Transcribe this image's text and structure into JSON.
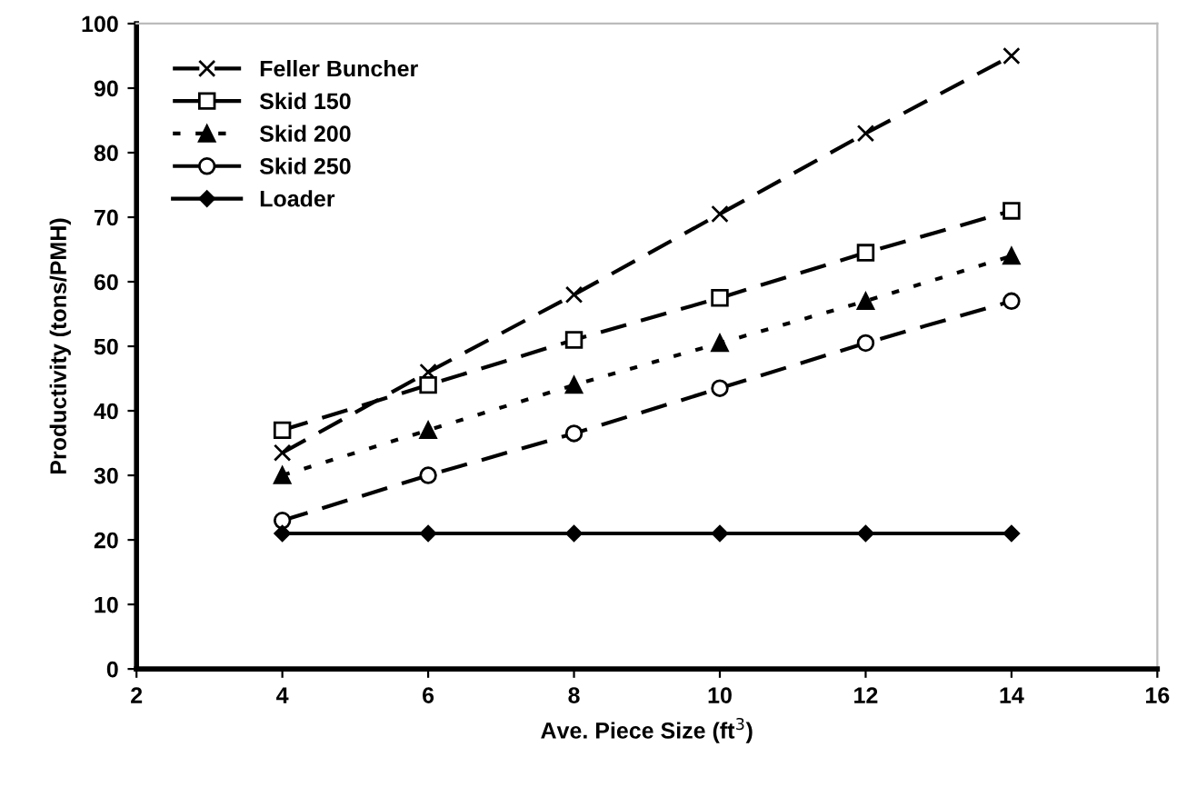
{
  "chart_data": {
    "type": "line",
    "xlabel": "Ave. Piece Size (ft$^{3}$)",
    "ylabel": "Productivity (tons/PMH)",
    "x": [
      4,
      6,
      8,
      10,
      12,
      14
    ],
    "series": [
      {
        "name": "Feller Buncher",
        "color": "#000000",
        "marker": "cross",
        "line_style": "dashed",
        "values": [
          33.5,
          46,
          58,
          70.5,
          83,
          95
        ]
      },
      {
        "name": "Skid 150",
        "color": "#000000",
        "marker": "square",
        "line_style": "dashed",
        "values": [
          37,
          44,
          51,
          57.5,
          64.5,
          71
        ]
      },
      {
        "name": "Skid 200",
        "color": "#000000",
        "marker": "triangle",
        "line_style": "dotted",
        "values": [
          30,
          37,
          44,
          50.5,
          57,
          64
        ]
      },
      {
        "name": "Skid 250",
        "color": "#000000",
        "marker": "circle",
        "line_style": "dashed",
        "values": [
          23,
          30,
          36.5,
          43.5,
          50.5,
          57
        ]
      },
      {
        "name": "Loader",
        "color": "#000000",
        "marker": "diamond",
        "line_style": "solid",
        "values": [
          21,
          21,
          21,
          21,
          21,
          21
        ]
      }
    ],
    "xlim": [
      2,
      16
    ],
    "xticks": [
      2,
      4,
      6,
      8,
      10,
      12,
      14,
      16
    ],
    "ylim": [
      0,
      100
    ],
    "yticks": [
      0,
      10,
      20,
      30,
      40,
      50,
      60,
      70,
      80,
      90,
      100
    ],
    "grid": false,
    "legend": "top left"
  }
}
